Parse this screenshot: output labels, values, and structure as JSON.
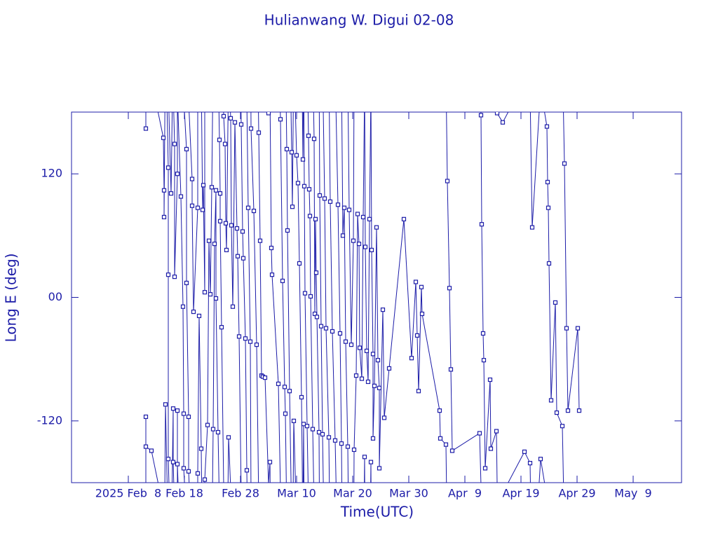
{
  "chart_data": {
    "type": "line",
    "title": "Hulianwang W. Digui 02-08",
    "xlabel": "Time(UTC)",
    "ylabel": "Long E (deg)",
    "color": "#1c1ca8",
    "marker": "square",
    "xlim": [
      "2025-01-28T21:00Z",
      "2025-05-17T15:00Z"
    ],
    "xticks": [
      {
        "value": "2025-02-08",
        "label": "2025 Feb  8"
      },
      {
        "value": "2025-02-18",
        "label": "Feb 18"
      },
      {
        "value": "2025-02-28",
        "label": "Feb 28"
      },
      {
        "value": "2025-03-10",
        "label": "Mar 10"
      },
      {
        "value": "2025-03-20",
        "label": "Mar 20"
      },
      {
        "value": "2025-03-30",
        "label": "Mar 30"
      },
      {
        "value": "2025-04-09",
        "label": "Apr  9"
      },
      {
        "value": "2025-04-19",
        "label": "Apr 19"
      },
      {
        "value": "2025-04-29",
        "label": "Apr 29"
      },
      {
        "value": "2025-05-09",
        "label": "May  9"
      }
    ],
    "ylim": [
      -180,
      180
    ],
    "yticks": [
      120,
      {
        "value": 0,
        "label": "00"
      },
      -120
    ],
    "x": [
      "2025-02-11T03:00Z",
      "2025-02-11T03:00Z",
      "2025-02-11T03:00Z",
      "2025-02-12T03:00Z",
      "2025-02-14T06:00Z",
      "2025-02-14T09:00Z",
      "2025-02-14T09:00Z",
      "2025-02-14T15:00Z",
      "2025-02-15T03:00Z",
      "2025-02-15T03:00Z",
      "2025-02-15T03:00Z",
      "2025-02-15T15:00Z",
      "2025-02-16T00:00Z",
      "2025-02-16T00:00Z",
      "2025-02-16T06:00Z",
      "2025-02-16T06:00Z",
      "2025-02-16T18:00Z",
      "2025-02-16T18:00Z",
      "2025-02-16T18:00Z",
      "2025-02-17T09:00Z",
      "2025-02-17T18:00Z",
      "2025-02-17T21:00Z",
      "2025-02-17T21:00Z",
      "2025-02-18T09:00Z",
      "2025-02-18T09:00Z",
      "2025-02-18T18:00Z",
      "2025-02-18T18:00Z",
      "2025-02-19T09:00Z",
      "2025-02-19T09:00Z",
      "2025-02-19T15:00Z",
      "2025-02-20T09:00Z",
      "2025-02-20T09:00Z",
      "2025-02-20T15:00Z",
      "2025-02-21T00:00Z",
      "2025-02-21T06:00Z",
      "2025-02-21T09:00Z",
      "2025-02-21T15:00Z",
      "2025-02-21T15:00Z",
      "2025-02-22T03:00Z",
      "2025-02-22T09:00Z",
      "2025-02-22T15:00Z",
      "2025-02-22T21:00Z",
      "2025-02-23T03:00Z",
      "2025-02-23T09:00Z",
      "2025-02-23T15:00Z",
      "2025-02-23T15:00Z",
      "2025-02-24T00:00Z",
      "2025-02-24T06:00Z",
      "2025-02-24T09:00Z",
      "2025-02-24T09:00Z",
      "2025-02-24T15:00Z",
      "2025-02-25T00:00Z",
      "2025-02-25T06:00Z",
      "2025-02-25T09:00Z",
      "2025-02-25T12:00Z",
      "2025-02-25T21:00Z",
      "2025-02-26T06:00Z",
      "2025-02-26T09:00Z",
      "2025-02-26T15:00Z",
      "2025-02-27T00:00Z",
      "2025-02-27T09:00Z",
      "2025-02-27T12:00Z",
      "2025-02-27T18:00Z",
      "2025-02-28T03:00Z",
      "2025-02-28T09:00Z",
      "2025-02-28T12:00Z",
      "2025-02-28T21:00Z",
      "2025-03-01T03:00Z",
      "2025-03-01T09:00Z",
      "2025-03-01T18:00Z",
      "2025-03-01T21:00Z",
      "2025-03-02T09:00Z",
      "2025-03-02T21:00Z",
      "2025-03-03T06:00Z",
      "2025-03-03T12:00Z",
      "2025-03-03T18:00Z",
      "2025-03-04T00:00Z",
      "2025-03-04T09:00Z",
      "2025-03-05T00:00Z",
      "2025-03-05T06:00Z",
      "2025-03-05T12:00Z",
      "2025-03-05T15:00Z",
      "2025-03-06T18:00Z",
      "2025-03-07T03:00Z",
      "2025-03-07T12:00Z",
      "2025-03-07T21:00Z",
      "2025-03-08T00:00Z",
      "2025-03-08T06:00Z",
      "2025-03-08T09:00Z",
      "2025-03-08T18:00Z",
      "2025-03-09T03:00Z",
      "2025-03-09T06:00Z",
      "2025-03-09T12:00Z",
      "2025-03-10T00:00Z",
      "2025-03-10T06:00Z",
      "2025-03-10T12:00Z",
      "2025-03-10T21:00Z",
      "2025-03-11T03:00Z",
      "2025-03-11T06:00Z",
      "2025-03-11T09:00Z",
      "2025-03-11T12:00Z",
      "2025-03-11T21:00Z",
      "2025-03-12T03:00Z",
      "2025-03-12T06:00Z",
      "2025-03-12T09:00Z",
      "2025-03-12T12:00Z",
      "2025-03-12T21:00Z",
      "2025-03-13T03:00Z",
      "2025-03-13T06:00Z",
      "2025-03-13T09:00Z",
      "2025-03-13T12:00Z",
      "2025-03-13T15:00Z",
      "2025-03-14T00:00Z",
      "2025-03-14T03:00Z",
      "2025-03-14T09:00Z",
      "2025-03-14T15:00Z",
      "2025-03-15T00:00Z",
      "2025-03-15T06:00Z",
      "2025-03-15T18:00Z",
      "2025-03-16T00:00Z",
      "2025-03-16T09:00Z",
      "2025-03-16T21:00Z",
      "2025-03-17T09:00Z",
      "2025-03-17T18:00Z",
      "2025-03-18T00:00Z",
      "2025-03-18T06:00Z",
      "2025-03-18T12:00Z",
      "2025-03-18T18:00Z",
      "2025-03-19T03:00Z",
      "2025-03-19T09:00Z",
      "2025-03-19T18:00Z",
      "2025-03-20T03:00Z",
      "2025-03-20T06:00Z",
      "2025-03-20T15:00Z",
      "2025-03-20T21:00Z",
      "2025-03-21T03:00Z",
      "2025-03-21T06:00Z",
      "2025-03-21T15:00Z",
      "2025-03-21T21:00Z",
      "2025-03-22T03:00Z",
      "2025-03-22T06:00Z",
      "2025-03-22T12:00Z",
      "2025-03-22T18:00Z",
      "2025-03-23T00:00Z",
      "2025-03-23T06:00Z",
      "2025-03-23T09:00Z",
      "2025-03-23T15:00Z",
      "2025-03-23T15:00Z",
      "2025-03-23T21:00Z",
      "2025-03-24T06:00Z",
      "2025-03-24T12:00Z",
      "2025-03-24T18:00Z",
      "2025-03-24T18:00Z",
      "2025-03-25T09:00Z",
      "2025-03-25T15:00Z",
      "2025-03-26T12:00Z",
      "2025-03-29T03:00Z",
      "2025-03-30T12:00Z",
      "2025-03-31T06:00Z",
      "2025-03-31T12:00Z",
      "2025-03-31T18:00Z",
      "2025-04-01T06:00Z",
      "2025-04-01T09:00Z",
      "2025-04-04T12:00Z",
      "2025-04-04T15:00Z",
      "2025-04-05T15:00Z",
      "2025-04-05T21:00Z",
      "2025-04-06T06:00Z",
      "2025-04-06T12:00Z",
      "2025-04-06T18:00Z",
      "2025-04-11T15:00Z",
      "2025-04-11T21:00Z",
      "2025-04-12T00:00Z",
      "2025-04-12T06:00Z",
      "2025-04-12T09:00Z",
      "2025-04-12T15:00Z",
      "2025-04-13T12:00Z",
      "2025-04-13T15:00Z",
      "2025-04-14T15:00Z",
      "2025-04-14T18:00Z",
      "2025-04-15T18:00Z",
      "2025-04-19T15:00Z",
      "2025-04-20T15:00Z",
      "2025-04-21T00:00Z",
      "2025-04-22T12:00Z",
      "2025-04-23T15:00Z",
      "2025-04-23T18:00Z",
      "2025-04-23T21:00Z",
      "2025-04-24T00:00Z",
      "2025-04-24T09:00Z",
      "2025-04-25T03:00Z",
      "2025-04-25T09:00Z",
      "2025-04-26T09:00Z",
      "2025-04-26T18:00Z",
      "2025-04-27T03:00Z",
      "2025-04-27T09:00Z",
      "2025-04-29T03:00Z",
      "2025-04-29T09:00Z"
    ],
    "values": [
      164,
      -116,
      -145,
      -149,
      155,
      104,
      78,
      -104,
      126,
      22,
      -157,
      101,
      -108,
      -160,
      149,
      20,
      120,
      -110,
      -162,
      98,
      -9,
      -113,
      -166,
      144,
      14,
      -116,
      -169,
      115,
      89,
      -14,
      87,
      -171,
      -18,
      -147,
      85,
      109,
      5,
      -177,
      -124,
      55,
      3,
      107,
      -128,
      52,
      104,
      -1,
      -131,
      153,
      101,
      74,
      -29,
      176,
      149,
      72,
      46,
      -136,
      174,
      70,
      -9,
      170,
      67,
      40,
      -38,
      168,
      64,
      38,
      -40,
      -168,
      87,
      -43,
      164,
      84,
      -46,
      160,
      55,
      -76,
      -77,
      -78,
      179,
      -160,
      48,
      22,
      -84,
      173,
      16,
      -87,
      -113,
      144,
      65,
      -91,
      141,
      88,
      -120,
      138,
      111,
      33,
      -97,
      134,
      -123,
      108,
      4,
      -125,
      157,
      105,
      79,
      1,
      -128,
      154,
      -16,
      76,
      24,
      -19,
      -131,
      99,
      -28,
      -133,
      96,
      -30,
      -136,
      93,
      -33,
      -139,
      90,
      -35,
      -142,
      60,
      87,
      -43,
      -145,
      85,
      -46,
      55,
      -148,
      -76,
      81,
      52,
      -49,
      -79,
      78,
      -155,
      49,
      -52,
      -82,
      76,
      -160,
      46,
      -55,
      -137,
      -86,
      68,
      -61,
      -88,
      -166,
      -12,
      -117,
      -69,
      76,
      -59,
      15,
      -37,
      -91,
      10,
      -16,
      -110,
      -137,
      -143,
      113,
      9,
      -70,
      -149,
      -132,
      177,
      71,
      -35,
      -61,
      -166,
      -80,
      -147,
      -130,
      179,
      170,
      -150,
      -161,
      68,
      -157,
      166,
      112,
      87,
      33,
      -100,
      -5,
      -112,
      -125,
      130,
      -30,
      -110,
      -30,
      -110
    ]
  }
}
